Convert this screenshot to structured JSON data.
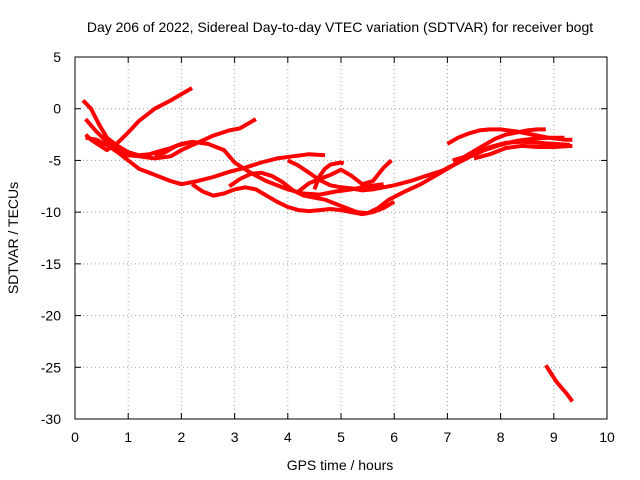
{
  "chart_data": {
    "type": "line",
    "title": "Day 206 of 2022, Sidereal Day-to-day VTEC variation (SDTVAR) for receiver bogt",
    "xlabel": "GPS time / hours",
    "ylabel": "SDTVAR / TECUs",
    "xlim": [
      0,
      10
    ],
    "ylim": [
      -30,
      5
    ],
    "xticks": [
      0,
      1,
      2,
      3,
      4,
      5,
      6,
      7,
      8,
      9,
      10
    ],
    "yticks": [
      5,
      0,
      -5,
      -10,
      -15,
      -20,
      -25,
      -30
    ],
    "grid": true,
    "legend": "none",
    "series_color": "#ff0000",
    "series": [
      {
        "x": [
          0.2,
          0.3,
          0.45,
          0.6,
          0.8,
          1.0,
          1.2,
          1.5,
          1.8,
          2.0,
          2.2
        ],
        "y": [
          -2.5,
          -3.0,
          -3.5,
          -4.0,
          -3.3,
          -2.3,
          -1.2,
          0.0,
          0.8,
          1.4,
          2.0
        ]
      },
      {
        "x": [
          0.15,
          0.3,
          0.45,
          0.6,
          0.8,
          1.0,
          1.2,
          1.4,
          1.6,
          1.8,
          2.0,
          2.2
        ],
        "y": [
          0.8,
          0.0,
          -1.5,
          -2.8,
          -3.6,
          -4.2,
          -4.5,
          -4.4,
          -4.1,
          -3.8,
          -3.4,
          -3.2
        ]
      },
      {
        "x": [
          0.2,
          0.4,
          0.6,
          0.8,
          1.0,
          1.2,
          1.5,
          1.8,
          2.0,
          2.3,
          2.6,
          2.9,
          3.1,
          3.4
        ],
        "y": [
          -1.0,
          -2.2,
          -3.2,
          -4.0,
          -4.5,
          -4.6,
          -4.8,
          -4.6,
          -4.0,
          -3.3,
          -2.6,
          -2.1,
          -1.9,
          -1.0
        ]
      },
      {
        "x": [
          0.2,
          0.4,
          0.6,
          0.8,
          1.0,
          1.2,
          1.5,
          1.8,
          2.0,
          2.3,
          2.6,
          2.9,
          3.2,
          3.5,
          3.8,
          4.1,
          4.4,
          4.7
        ],
        "y": [
          -2.8,
          -3.0,
          -3.5,
          -4.2,
          -5.0,
          -5.8,
          -6.4,
          -7.0,
          -7.3,
          -7.0,
          -6.6,
          -6.1,
          -5.7,
          -5.2,
          -4.8,
          -4.6,
          -4.4,
          -4.5
        ]
      },
      {
        "x": [
          1.5,
          1.7,
          1.9,
          2.2,
          2.5,
          2.8,
          3.0,
          3.3,
          3.6,
          4.0,
          4.3,
          4.6,
          4.9,
          5.2,
          5.5,
          5.8
        ],
        "y": [
          -4.6,
          -4.2,
          -3.6,
          -3.2,
          -3.4,
          -4.0,
          -5.2,
          -6.2,
          -7.0,
          -7.8,
          -8.2,
          -8.3,
          -8.0,
          -7.8,
          -7.5,
          -7.3
        ]
      },
      {
        "x": [
          2.2,
          2.4,
          2.6,
          2.8,
          3.0,
          3.2,
          3.4,
          3.6,
          3.8,
          4.0,
          4.2,
          4.4,
          4.6,
          4.8,
          5.0,
          5.2,
          5.4,
          5.6,
          5.8,
          6.0
        ],
        "y": [
          -7.3,
          -8.0,
          -8.4,
          -8.2,
          -7.8,
          -7.6,
          -7.8,
          -8.4,
          -9.0,
          -9.5,
          -9.8,
          -9.9,
          -9.8,
          -9.7,
          -9.8,
          -10.0,
          -10.2,
          -10.0,
          -9.6,
          -9.0
        ]
      },
      {
        "x": [
          2.9,
          3.1,
          3.3,
          3.5,
          3.7,
          3.9,
          4.1,
          4.3,
          4.5,
          4.7,
          4.9,
          5.1,
          5.3,
          5.5,
          5.7,
          5.9,
          6.2,
          6.5,
          6.8,
          7.1,
          7.4,
          7.7,
          8.0,
          8.3,
          8.6,
          8.9,
          9.2
        ],
        "y": [
          -7.5,
          -6.8,
          -6.3,
          -6.2,
          -6.5,
          -7.1,
          -7.9,
          -8.4,
          -8.6,
          -8.8,
          -9.2,
          -9.6,
          -10.0,
          -10.1,
          -9.6,
          -8.8,
          -8.0,
          -7.3,
          -6.4,
          -5.5,
          -4.7,
          -4.0,
          -3.5,
          -3.1,
          -2.9,
          -2.8,
          -2.8
        ]
      },
      {
        "x": [
          4.0,
          4.2,
          4.4,
          4.6,
          4.8,
          5.0,
          5.2,
          5.4,
          5.6,
          5.8,
          6.0,
          6.3,
          6.6,
          6.9,
          7.2,
          7.5,
          7.8,
          8.1,
          8.4,
          8.7,
          9.0,
          9.3
        ],
        "y": [
          -5.0,
          -5.5,
          -6.2,
          -6.9,
          -7.4,
          -7.6,
          -7.7,
          -7.9,
          -7.8,
          -7.6,
          -7.4,
          -7.0,
          -6.5,
          -6.0,
          -5.2,
          -4.4,
          -3.7,
          -3.3,
          -3.2,
          -3.3,
          -3.4,
          -3.5
        ]
      },
      {
        "x": [
          4.2,
          4.4,
          4.6,
          4.8,
          5.0,
          5.2,
          5.4,
          5.6,
          5.8,
          5.95
        ],
        "y": [
          -8.0,
          -7.2,
          -6.8,
          -6.4,
          -5.9,
          -6.5,
          -7.3,
          -7.0,
          -5.7,
          -5.0
        ]
      },
      {
        "x": [
          4.5,
          4.6,
          4.7,
          4.8,
          5.0,
          5.05
        ],
        "y": [
          -7.8,
          -6.5,
          -5.8,
          -5.4,
          -5.2,
          -5.3
        ]
      },
      {
        "x": [
          7.0,
          7.2,
          7.4,
          7.6,
          7.8,
          8.0,
          8.3,
          8.6,
          8.9,
          9.2,
          9.35
        ],
        "y": [
          -3.4,
          -2.8,
          -2.4,
          -2.1,
          -2.0,
          -2.0,
          -2.2,
          -2.5,
          -2.8,
          -3.0,
          -3.0
        ]
      },
      {
        "x": [
          7.1,
          7.3,
          7.5,
          7.7,
          7.9,
          8.1,
          8.3,
          8.5,
          8.7,
          8.85
        ],
        "y": [
          -5.0,
          -4.7,
          -4.1,
          -3.5,
          -2.9,
          -2.5,
          -2.3,
          -2.1,
          -2.0,
          -2.0
        ]
      },
      {
        "x": [
          7.5,
          7.8,
          8.1,
          8.4,
          8.7,
          9.0,
          9.35
        ],
        "y": [
          -4.8,
          -4.4,
          -3.8,
          -3.6,
          -3.7,
          -3.7,
          -3.6
        ]
      },
      {
        "x": [
          8.85,
          8.95,
          9.05,
          9.15,
          9.25,
          9.35
        ],
        "y": [
          -24.8,
          -25.6,
          -26.4,
          -27.0,
          -27.6,
          -28.3
        ]
      }
    ]
  }
}
